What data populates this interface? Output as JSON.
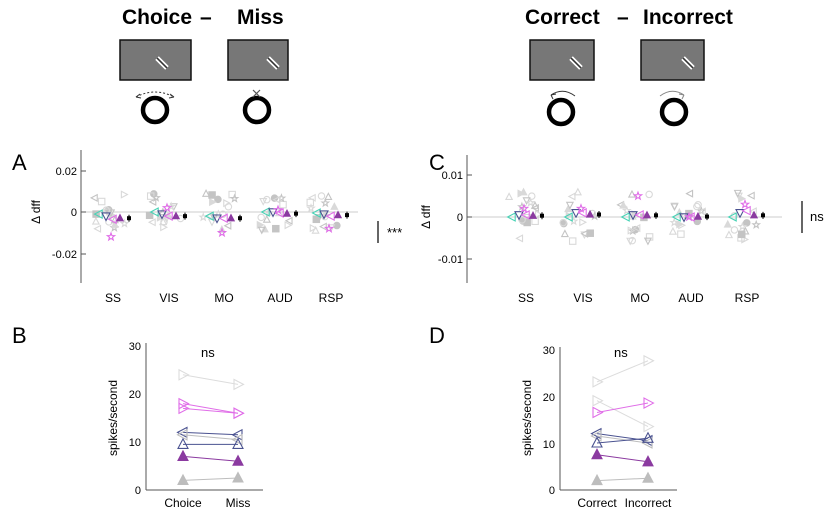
{
  "header": {
    "left": {
      "a": "Choice",
      "dash": "–",
      "b": "Miss"
    },
    "right": {
      "a": "Correct",
      "dash": "–",
      "b": "Incorrect"
    }
  },
  "panel_letters": [
    "A",
    "B",
    "C",
    "D"
  ],
  "colors": {
    "magenta": "#e06ee8",
    "purple": "#8b3aa0",
    "teal": "#49d3b6",
    "navy": "#4a5290",
    "grey": "#c9c9c9",
    "black": "#000000",
    "screen": "#777777"
  },
  "chart_data": [
    {
      "panel": "A",
      "type": "scatter",
      "ylabel": "Δ dff",
      "ylim": [
        -0.03,
        0.03
      ],
      "yticks": [
        "0.02",
        "0",
        "-0.02"
      ],
      "categories": [
        "SS",
        "VIS",
        "MO",
        "AUD",
        "RSP"
      ],
      "significance": "***",
      "series": [
        {
          "values": [
            -0.001,
            0.0,
            -0.002,
            0.0,
            -0.0005
          ]
        },
        {
          "values": [
            -0.002,
            -0.001,
            -0.003,
            0.0,
            -0.001
          ]
        },
        {
          "values": [
            -0.0035,
            -0.002,
            -0.003,
            -0.0005,
            -0.002
          ]
        },
        {
          "values": [
            -0.003,
            -0.002,
            -0.003,
            -0.0008,
            -0.0015
          ]
        }
      ]
    },
    {
      "panel": "C",
      "type": "scatter",
      "ylabel": "Δ dff",
      "ylim": [
        -0.015,
        0.015
      ],
      "yticks": [
        "0.01",
        "0",
        "-0.01"
      ],
      "categories": [
        "SS",
        "VIS",
        "MO",
        "AUD",
        "RSP"
      ],
      "significance": "ns",
      "series": [
        {
          "values": [
            0.0,
            0.0,
            0.0,
            0.0,
            0.0
          ]
        },
        {
          "values": [
            0.0005,
            0.001,
            0.0005,
            0.0,
            0.001
          ]
        },
        {
          "values": [
            0.0005,
            0.001,
            0.0005,
            0.0,
            0.0015
          ]
        },
        {
          "values": [
            0.0003,
            0.0006,
            0.0004,
            0.0001,
            0.0004
          ]
        }
      ]
    },
    {
      "panel": "B",
      "type": "line",
      "ylabel": "spikes/second",
      "ylim": [
        0,
        30
      ],
      "yticks": [
        "30",
        "20",
        "10",
        "0"
      ],
      "categories": [
        "Choice",
        "Miss"
      ],
      "significance": "ns",
      "series": [
        {
          "values": [
            24,
            22
          ],
          "color": "grey-light"
        },
        {
          "values": [
            18,
            16
          ],
          "color": "magenta"
        },
        {
          "values": [
            17,
            16
          ],
          "color": "magenta"
        },
        {
          "values": [
            12,
            11.5
          ],
          "color": "navy"
        },
        {
          "values": [
            11.5,
            10.5
          ],
          "color": "grey"
        },
        {
          "values": [
            9.5,
            9.5
          ],
          "color": "navy"
        },
        {
          "values": [
            7,
            6
          ],
          "color": "purple"
        },
        {
          "values": [
            2,
            2.5
          ],
          "color": "grey"
        }
      ]
    },
    {
      "panel": "D",
      "type": "line",
      "ylabel": "spikes/second",
      "ylim": [
        0,
        30
      ],
      "yticks": [
        "30",
        "20",
        "10",
        "0"
      ],
      "categories": [
        "Correct",
        "Incorrect"
      ],
      "significance": "ns",
      "series": [
        {
          "values": [
            23,
            27.5
          ],
          "color": "grey-light"
        },
        {
          "values": [
            19,
            13.5
          ],
          "color": "grey-light"
        },
        {
          "values": [
            16.5,
            18.5
          ],
          "color": "magenta"
        },
        {
          "values": [
            12,
            10.5
          ],
          "color": "navy"
        },
        {
          "values": [
            11.5,
            10
          ],
          "color": "grey"
        },
        {
          "values": [
            10,
            11
          ],
          "color": "navy"
        },
        {
          "values": [
            7.5,
            6
          ],
          "color": "purple"
        },
        {
          "values": [
            2,
            2.5
          ],
          "color": "grey"
        }
      ]
    }
  ]
}
